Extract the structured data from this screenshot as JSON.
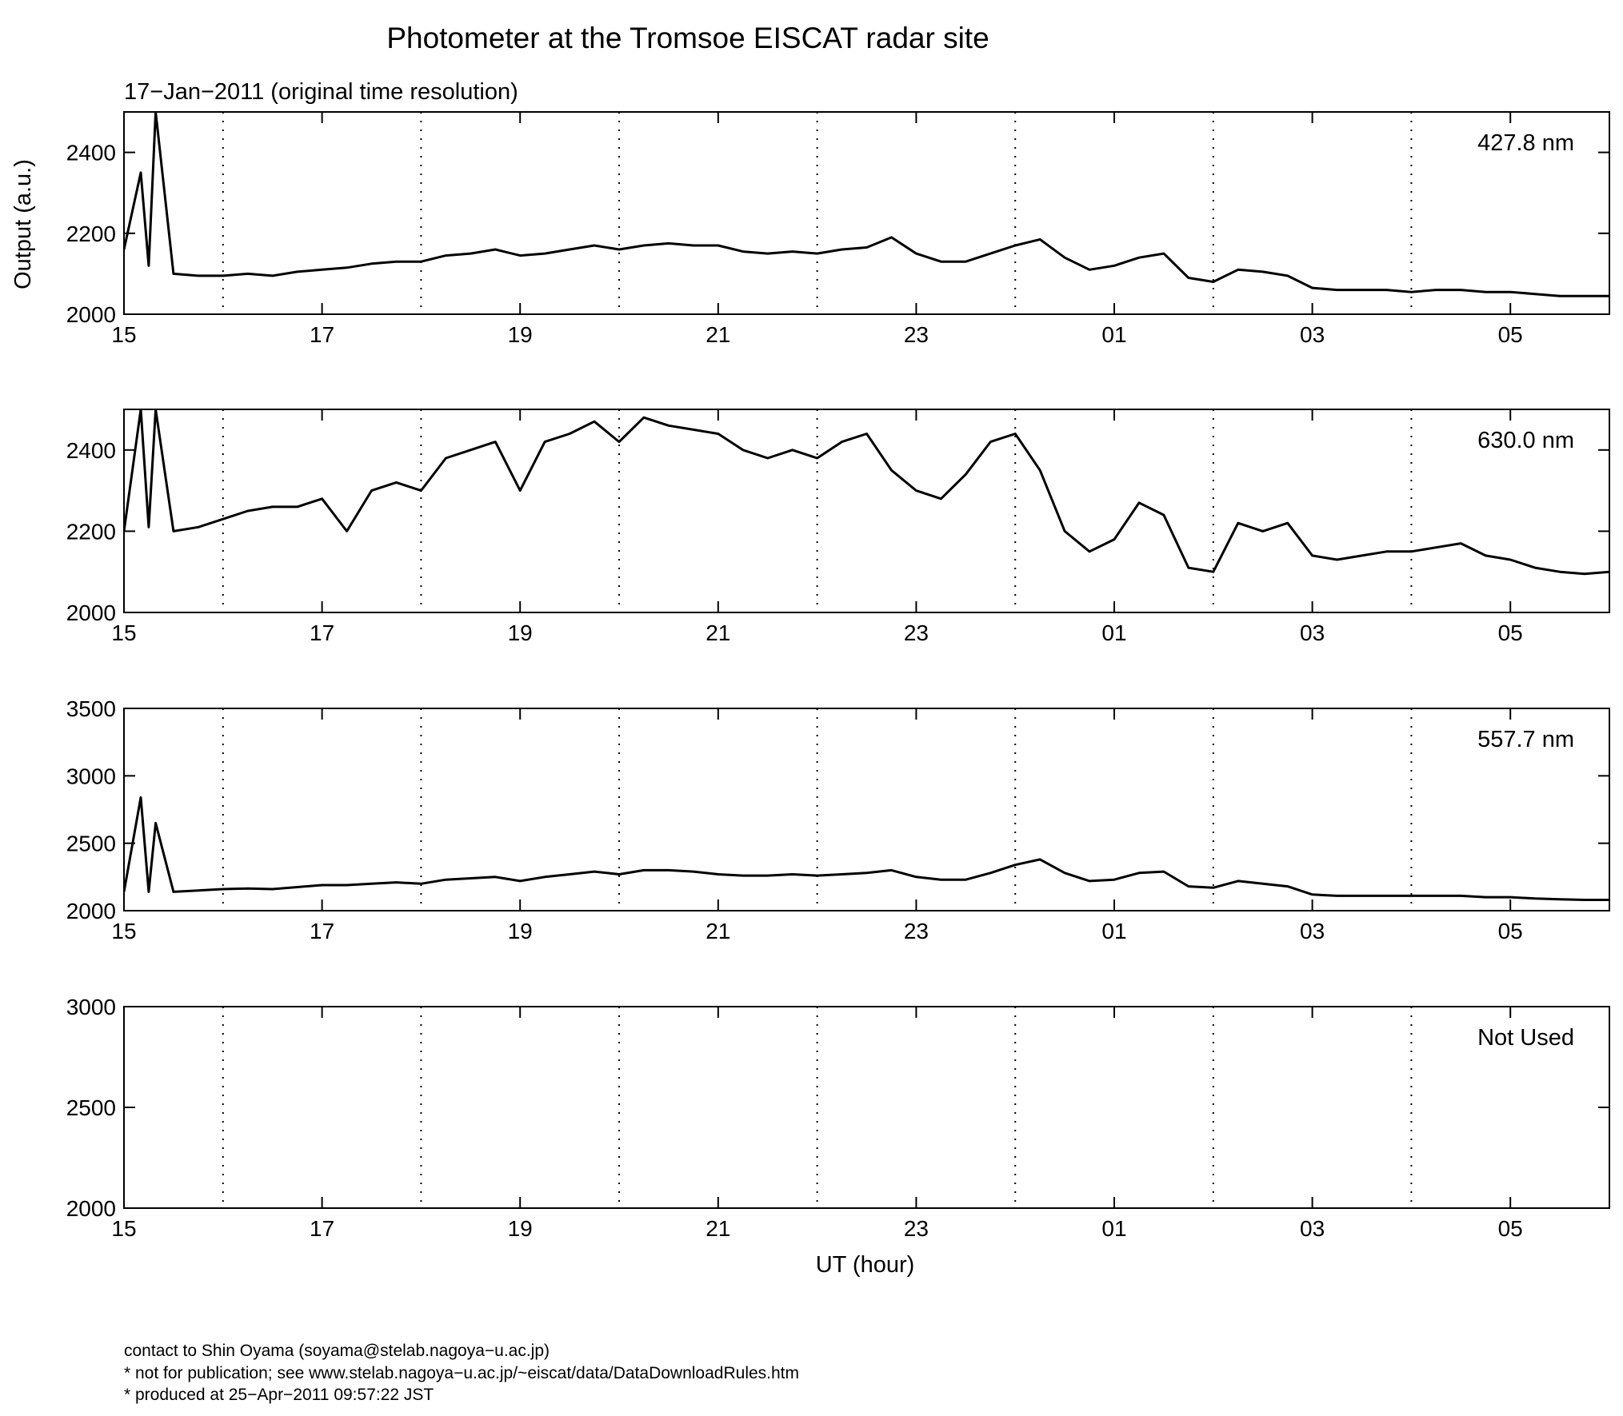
{
  "title": "Photometer at the Tromsoe EISCAT radar site",
  "subtitle": "17−Jan−2011 (original time resolution)",
  "footer": [
    "contact to Shin Oyama (soyama@stelab.nagoya−u.ac.jp)",
    "* not for publication; see www.stelab.nagoya−u.ac.jp/~eiscat/data/DataDownloadRules.htm",
    "* produced at 25−Apr−2011 09:57:22 JST"
  ],
  "chart_data": [
    {
      "type": "line",
      "annotation": "427.8 nm",
      "ylabel": "Output (a.u.)",
      "x": [
        15,
        15.17,
        15.25,
        15.32,
        15.5,
        15.75,
        16,
        16.25,
        16.5,
        16.75,
        17,
        17.25,
        17.5,
        17.75,
        18,
        18.25,
        18.5,
        18.75,
        19,
        19.25,
        19.5,
        19.75,
        20,
        20.25,
        20.5,
        20.75,
        21,
        21.25,
        21.5,
        21.75,
        22,
        22.25,
        22.5,
        22.75,
        23,
        23.25,
        23.5,
        23.75,
        24,
        24.25,
        24.5,
        24.75,
        25,
        25.25,
        25.5,
        25.75,
        26,
        26.25,
        26.5,
        26.75,
        27,
        27.25,
        27.5,
        27.75,
        28,
        28.25,
        28.5,
        28.75,
        29,
        29.25,
        29.5,
        29.75,
        30
      ],
      "series": [
        {
          "color": "#000000",
          "values": [
            2160,
            2350,
            2120,
            2500,
            2100,
            2095,
            2095,
            2100,
            2095,
            2105,
            2110,
            2115,
            2125,
            2130,
            2130,
            2145,
            2150,
            2160,
            2145,
            2150,
            2160,
            2170,
            2160,
            2170,
            2175,
            2170,
            2170,
            2155,
            2150,
            2155,
            2150,
            2160,
            2165,
            2190,
            2150,
            2130,
            2130,
            2150,
            2170,
            2185,
            2140,
            2110,
            2120,
            2140,
            2150,
            2090,
            2080,
            2110,
            2105,
            2095,
            2065,
            2060,
            2060,
            2060,
            2055,
            2060,
            2060,
            2055,
            2055,
            2050,
            2045,
            2045,
            2045
          ]
        }
      ],
      "xlim": [
        15,
        30
      ],
      "xticks": [
        15,
        17,
        19,
        21,
        23,
        {
          "value": 25,
          "label": "01"
        },
        {
          "value": 27,
          "label": "03"
        },
        {
          "value": 29,
          "label": "05"
        }
      ],
      "xgrid": [
        16,
        18,
        20,
        22,
        24,
        26,
        28
      ],
      "ylim": [
        2000,
        2500
      ],
      "yticks": [
        2000,
        2200,
        2400
      ]
    },
    {
      "type": "line",
      "annotation": "630.0 nm",
      "x": [
        15,
        15.17,
        15.25,
        15.32,
        15.5,
        15.75,
        16,
        16.25,
        16.5,
        16.75,
        17,
        17.25,
        17.5,
        17.75,
        18,
        18.25,
        18.5,
        18.75,
        19,
        19.25,
        19.5,
        19.75,
        20,
        20.25,
        20.5,
        20.75,
        21,
        21.25,
        21.5,
        21.75,
        22,
        22.25,
        22.5,
        22.75,
        23,
        23.25,
        23.5,
        23.75,
        24,
        24.25,
        24.5,
        24.75,
        25,
        25.25,
        25.5,
        25.75,
        26,
        26.25,
        26.5,
        26.75,
        27,
        27.25,
        27.5,
        27.75,
        28,
        28.25,
        28.5,
        28.75,
        29,
        29.25,
        29.5,
        29.75,
        30
      ],
      "series": [
        {
          "color": "#000000",
          "values": [
            2200,
            2500,
            2210,
            2500,
            2200,
            2210,
            2230,
            2250,
            2260,
            2260,
            2280,
            2200,
            2300,
            2320,
            2300,
            2380,
            2400,
            2420,
            2300,
            2420,
            2440,
            2470,
            2420,
            2480,
            2460,
            2450,
            2440,
            2400,
            2380,
            2400,
            2380,
            2420,
            2440,
            2350,
            2300,
            2280,
            2340,
            2420,
            2440,
            2350,
            2200,
            2150,
            2180,
            2270,
            2240,
            2110,
            2100,
            2220,
            2200,
            2220,
            2140,
            2130,
            2140,
            2150,
            2150,
            2160,
            2170,
            2140,
            2130,
            2110,
            2100,
            2095,
            2100
          ]
        }
      ],
      "xlim": [
        15,
        30
      ],
      "xticks": [
        15,
        17,
        19,
        21,
        23,
        {
          "value": 25,
          "label": "01"
        },
        {
          "value": 27,
          "label": "03"
        },
        {
          "value": 29,
          "label": "05"
        }
      ],
      "xgrid": [
        16,
        18,
        20,
        22,
        24,
        26,
        28
      ],
      "ylim": [
        2000,
        2500
      ],
      "yticks": [
        2000,
        2200,
        2400
      ]
    },
    {
      "type": "line",
      "annotation": "557.7 nm",
      "x": [
        15,
        15.17,
        15.25,
        15.32,
        15.5,
        15.75,
        16,
        16.25,
        16.5,
        16.75,
        17,
        17.25,
        17.5,
        17.75,
        18,
        18.25,
        18.5,
        18.75,
        19,
        19.25,
        19.5,
        19.75,
        20,
        20.25,
        20.5,
        20.75,
        21,
        21.25,
        21.5,
        21.75,
        22,
        22.25,
        22.5,
        22.75,
        23,
        23.25,
        23.5,
        23.75,
        24,
        24.25,
        24.5,
        24.75,
        25,
        25.25,
        25.5,
        25.75,
        26,
        26.25,
        26.5,
        26.75,
        27,
        27.25,
        27.5,
        27.75,
        28,
        28.25,
        28.5,
        28.75,
        29,
        29.25,
        29.5,
        29.75,
        30
      ],
      "series": [
        {
          "color": "#000000",
          "values": [
            2140,
            2840,
            2140,
            2650,
            2140,
            2150,
            2160,
            2165,
            2160,
            2175,
            2190,
            2190,
            2200,
            2210,
            2200,
            2230,
            2240,
            2250,
            2220,
            2250,
            2270,
            2290,
            2270,
            2300,
            2300,
            2290,
            2270,
            2260,
            2260,
            2270,
            2260,
            2270,
            2280,
            2300,
            2250,
            2230,
            2230,
            2280,
            2340,
            2380,
            2280,
            2220,
            2230,
            2280,
            2290,
            2180,
            2170,
            2220,
            2200,
            2180,
            2120,
            2110,
            2110,
            2110,
            2110,
            2110,
            2110,
            2100,
            2100,
            2090,
            2085,
            2080,
            2080
          ]
        }
      ],
      "xlim": [
        15,
        30
      ],
      "xticks": [
        15,
        17,
        19,
        21,
        23,
        {
          "value": 25,
          "label": "01"
        },
        {
          "value": 27,
          "label": "03"
        },
        {
          "value": 29,
          "label": "05"
        }
      ],
      "xgrid": [
        16,
        18,
        20,
        22,
        24,
        26,
        28
      ],
      "ylim": [
        2000,
        3500
      ],
      "yticks": [
        2000,
        2500,
        3000,
        3500
      ]
    },
    {
      "type": "line",
      "annotation": "Not Used",
      "xlabel": "UT (hour)",
      "series": [],
      "xlim": [
        15,
        30
      ],
      "xticks": [
        15,
        17,
        19,
        21,
        23,
        {
          "value": 25,
          "label": "01"
        },
        {
          "value": 27,
          "label": "03"
        },
        {
          "value": 29,
          "label": "05"
        }
      ],
      "xgrid": [
        16,
        18,
        20,
        22,
        24,
        26,
        28
      ],
      "ylim": [
        2000,
        3000
      ],
      "yticks": [
        2000,
        2500,
        3000
      ]
    }
  ]
}
